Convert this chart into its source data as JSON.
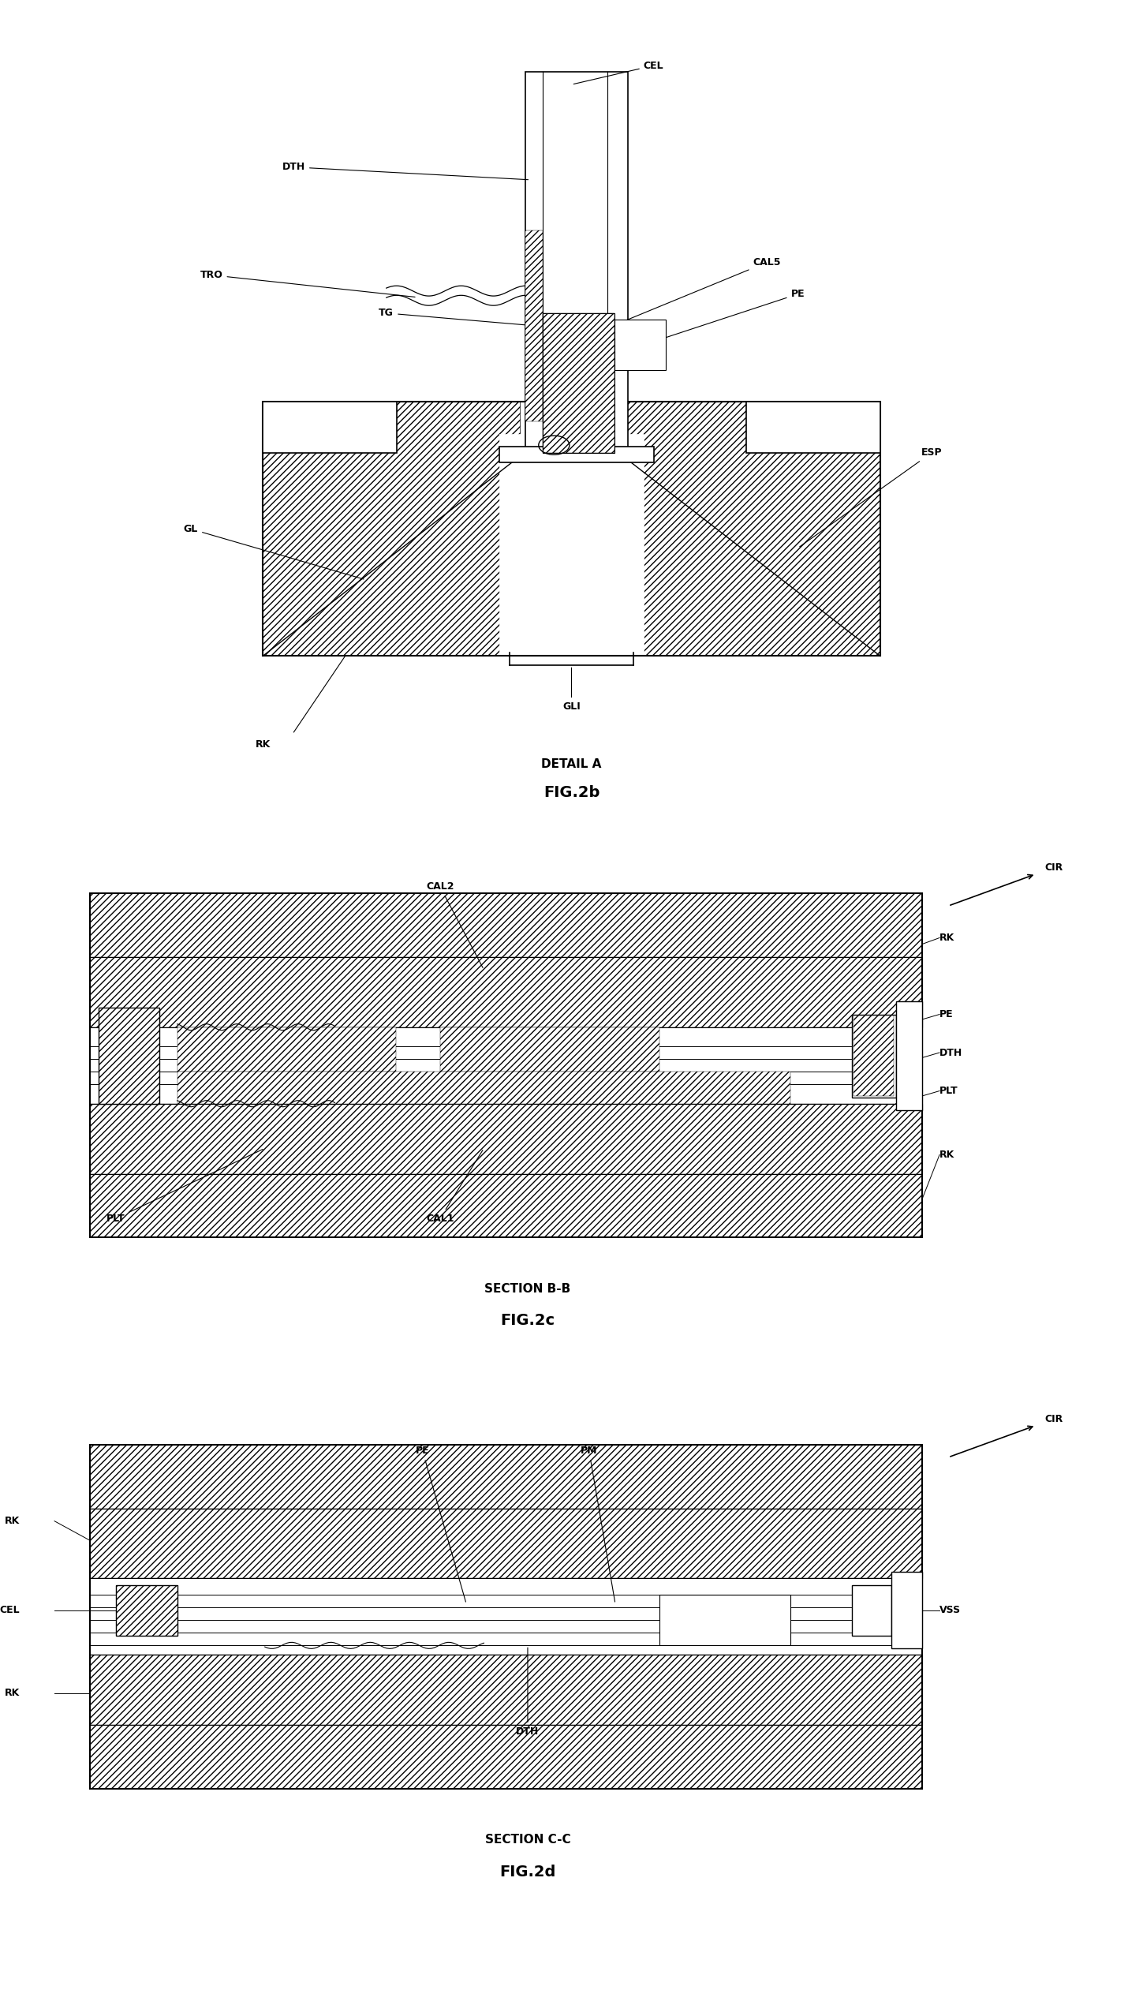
{
  "bg_color": "#ffffff",
  "line_color": "#000000",
  "fig2b": {
    "title_sub": "DETAIL A",
    "title": "FIG.2b"
  },
  "fig2c": {
    "title_sub": "SECTION B-B",
    "title": "FIG.2c"
  },
  "fig2d": {
    "title_sub": "SECTION C-C",
    "title": "FIG.2d"
  }
}
